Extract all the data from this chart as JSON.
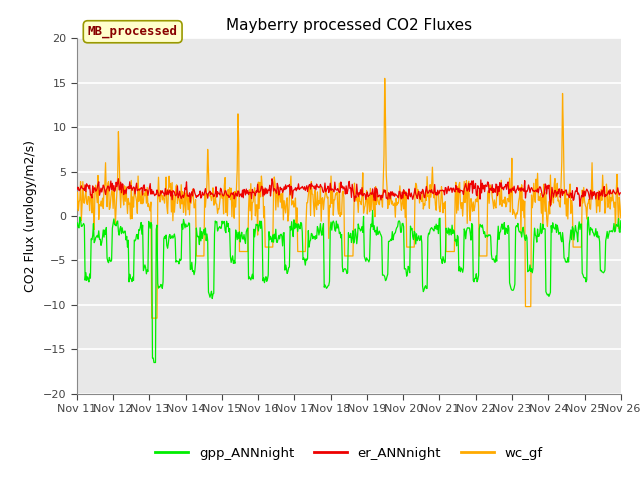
{
  "title": "Mayberry processed CO2 Fluxes",
  "ylabel": "CO2 Flux (urology/m2/s)",
  "ylim": [
    -20,
    20
  ],
  "yticks": [
    -20,
    -15,
    -10,
    -5,
    0,
    5,
    10,
    15,
    20
  ],
  "xlim_days": [
    0,
    15
  ],
  "xtick_labels": [
    "Nov 11",
    "Nov 12",
    "Nov 13",
    "Nov 14",
    "Nov 15",
    "Nov 16",
    "Nov 17",
    "Nov 18",
    "Nov 19",
    "Nov 20",
    "Nov 21",
    "Nov 22",
    "Nov 23",
    "Nov 24",
    "Nov 25",
    "Nov 26"
  ],
  "legend_label_box": "MB_processed",
  "legend_box_facecolor": "#ffffcc",
  "legend_box_edge": "#999900",
  "legend_box_text": "#880000",
  "bg_color": "#e8e8e8",
  "grid_color": "#ffffff",
  "line_gpp": "#00ee00",
  "line_er": "#ee0000",
  "line_wc": "#ffaa00",
  "legend_entries": [
    "gpp_ANNnight",
    "er_ANNnight",
    "wc_gf"
  ],
  "legend_colors": [
    "#00ee00",
    "#ee0000",
    "#ffaa00"
  ],
  "n_points": 720,
  "figsize": [
    6.4,
    4.8
  ],
  "dpi": 100
}
